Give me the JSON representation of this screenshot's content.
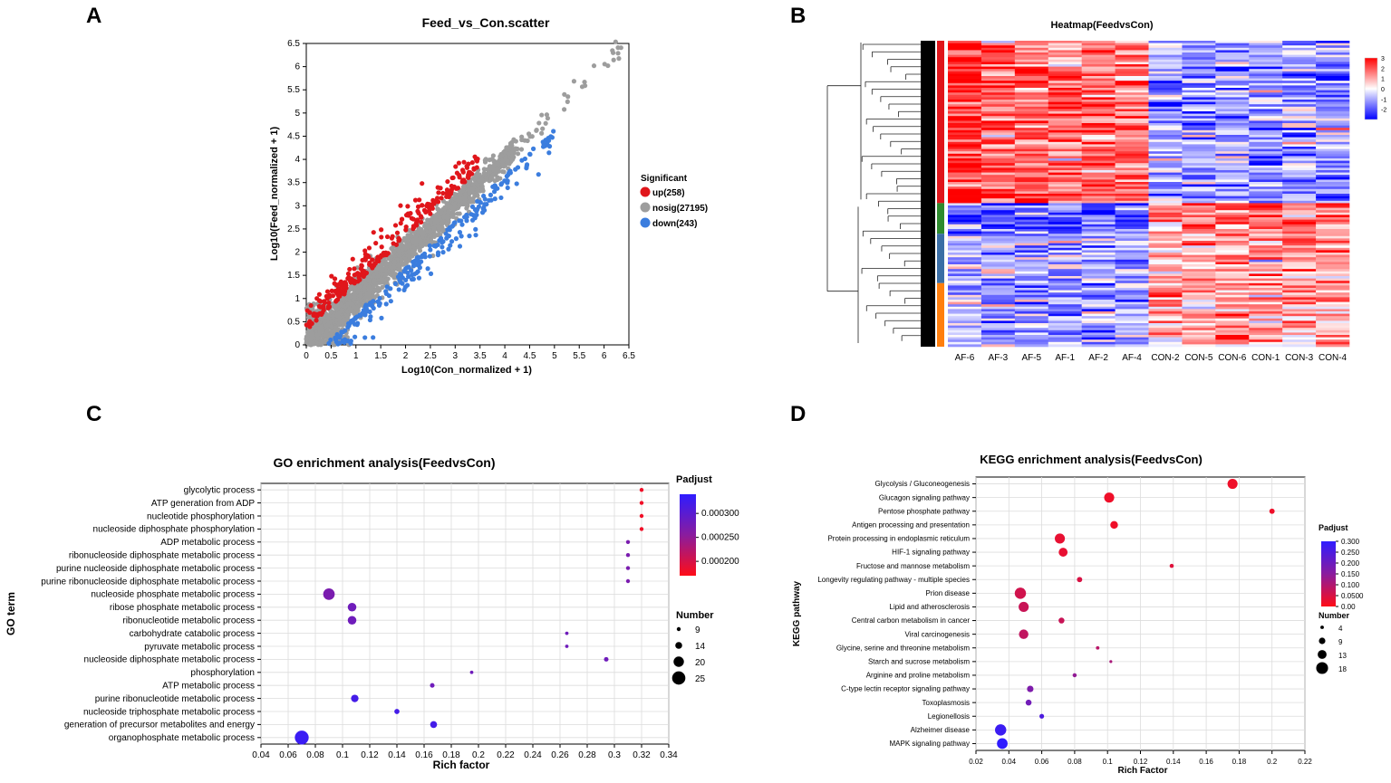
{
  "panels": {
    "a": "A",
    "b": "B",
    "c": "C",
    "d": "D"
  },
  "chart_data": [
    {
      "id": "scatter",
      "type": "scatter",
      "title": "Feed_vs_Con.scatter",
      "xlabel": "Log10(Con_normalized + 1)",
      "ylabel": "Log10(Feed_normalized + 1)",
      "xlim": [
        0,
        6.5
      ],
      "ylim": [
        0,
        6.5
      ],
      "ticks": [
        "0",
        "0.5",
        "1",
        "1.5",
        "2",
        "2.5",
        "3",
        "3.5",
        "4",
        "4.5",
        "5",
        "5.5",
        "6",
        "6.5"
      ],
      "legend_title": "Significant",
      "legend": [
        {
          "label": "up(258)",
          "color": "#e0161b"
        },
        {
          "label": "nosig(27195)",
          "color": "#9d9d9d"
        },
        {
          "label": "down(243)",
          "color": "#3b7dde"
        }
      ],
      "series_counts": {
        "up": 258,
        "nosig": 27195,
        "down": 243
      },
      "note": "point cloud along diagonal; up points above, down points below"
    },
    {
      "id": "heatmap",
      "type": "heatmap",
      "title": "Heatmap(FeedvsCon)",
      "columns": [
        "AF-6",
        "AF-3",
        "AF-5",
        "AF-1",
        "AF-2",
        "AF-4",
        "CON-2",
        "CON-5",
        "CON-6",
        "CON-1",
        "CON-3",
        "CON-4"
      ],
      "colorbar_ticks": [
        "3",
        "2",
        "1",
        "0",
        "-1",
        "-2"
      ],
      "colorscale": [
        "#0000ff",
        "#ffffff",
        "#ff0000"
      ],
      "cluster_colors": [
        "#e0161b",
        "#2e8b2e",
        "#3a6ea5",
        "#ff7f0e"
      ]
    },
    {
      "id": "go",
      "type": "scatter",
      "title": "GO enrichment analysis(FeedvsCon)",
      "xlabel": "Rich factor",
      "ylabel": "GO term",
      "xlim": [
        0.04,
        0.34
      ],
      "xticks": [
        "0.04",
        "0.06",
        "0.08",
        "0.1",
        "0.12",
        "0.14",
        "0.16",
        "0.18",
        "0.2",
        "0.22",
        "0.24",
        "0.26",
        "0.28",
        "0.3",
        "0.32",
        "0.34"
      ],
      "terms": [
        {
          "term": "glycolytic process",
          "rich": 0.32,
          "number": 9,
          "padj": 0.00018
        },
        {
          "term": "ATP generation from ADP",
          "rich": 0.32,
          "number": 9,
          "padj": 0.00018
        },
        {
          "term": "nucleotide phosphorylation",
          "rich": 0.32,
          "number": 9,
          "padj": 0.00018
        },
        {
          "term": "nucleoside diphosphate phosphorylation",
          "rich": 0.32,
          "number": 9,
          "padj": 0.00018
        },
        {
          "term": "ADP metabolic process",
          "rich": 0.31,
          "number": 9,
          "padj": 0.00027
        },
        {
          "term": "ribonucleoside diphosphate metabolic process",
          "rich": 0.31,
          "number": 9,
          "padj": 0.00027
        },
        {
          "term": "purine nucleoside diphosphate metabolic process",
          "rich": 0.31,
          "number": 9,
          "padj": 0.00027
        },
        {
          "term": "purine ribonucleoside diphosphate metabolic process",
          "rich": 0.31,
          "number": 9,
          "padj": 0.00027
        },
        {
          "term": "nucleoside phosphate metabolic process",
          "rich": 0.09,
          "number": 22,
          "padj": 0.00027
        },
        {
          "term": "ribose phosphate metabolic process",
          "rich": 0.107,
          "number": 17,
          "padj": 0.00028
        },
        {
          "term": "ribonucleotide metabolic process",
          "rich": 0.107,
          "number": 17,
          "padj": 0.00028
        },
        {
          "term": "carbohydrate catabolic process",
          "rich": 0.265,
          "number": 8,
          "padj": 0.00028
        },
        {
          "term": "pyruvate metabolic process",
          "rich": 0.265,
          "number": 8,
          "padj": 0.00028
        },
        {
          "term": "nucleoside diphosphate metabolic process",
          "rich": 0.294,
          "number": 10,
          "padj": 0.00028
        },
        {
          "term": "phosphorylation",
          "rich": 0.195,
          "number": 8,
          "padj": 0.00028
        },
        {
          "term": "ATP metabolic process",
          "rich": 0.166,
          "number": 10,
          "padj": 0.00028
        },
        {
          "term": "purine ribonucleotide metabolic process",
          "rich": 0.109,
          "number": 15,
          "padj": 0.00032
        },
        {
          "term": "nucleoside triphosphate metabolic process",
          "rich": 0.14,
          "number": 11,
          "padj": 0.00032
        },
        {
          "term": "generation of precursor metabolites and energy",
          "rich": 0.167,
          "number": 14,
          "padj": 0.00032
        },
        {
          "term": "organophosphate metabolic process",
          "rich": 0.07,
          "number": 26,
          "padj": 0.00033
        }
      ],
      "legend_padj_title": "Padjust",
      "legend_padj_ticks": [
        {
          "label": "0.000300",
          "value": 0.0003
        },
        {
          "label": "0.000250",
          "value": 0.00025
        },
        {
          "label": "0.000200",
          "value": 0.0002
        }
      ],
      "legend_padj_range": [
        0.00017,
        0.00034
      ],
      "legend_number_title": "Number",
      "legend_number_items": [
        {
          "label": "9",
          "value": 9
        },
        {
          "label": "14",
          "value": 14
        },
        {
          "label": "20",
          "value": 20
        },
        {
          "label": "25",
          "value": 25
        }
      ]
    },
    {
      "id": "kegg",
      "type": "scatter",
      "title": "KEGG enrichment analysis(FeedvsCon)",
      "xlabel": "Rich Factor",
      "ylabel": "KEGG pathway",
      "xlim": [
        0.02,
        0.22
      ],
      "xticks": [
        "0.02",
        "0.04",
        "0.06",
        "0.08",
        "0.1",
        "0.12",
        "0.14",
        "0.16",
        "0.18",
        "0.2",
        "0.22"
      ],
      "terms": [
        {
          "term": "Glycolysis / Gluconeogenesis",
          "rich": 0.176,
          "number": 15,
          "padj": 0.02
        },
        {
          "term": "Glucagon signaling pathway",
          "rich": 0.101,
          "number": 15,
          "padj": 0.02
        },
        {
          "term": "Pentose phosphate pathway",
          "rich": 0.2,
          "number": 7,
          "padj": 0.02
        },
        {
          "term": "Antigen processing and presentation",
          "rich": 0.104,
          "number": 11,
          "padj": 0.02
        },
        {
          "term": "Protein processing in endoplasmic reticulum",
          "rich": 0.071,
          "number": 15,
          "padj": 0.03
        },
        {
          "term": "HIF-1 signaling pathway",
          "rich": 0.073,
          "number": 13,
          "padj": 0.03
        },
        {
          "term": "Fructose and mannose metabolism",
          "rich": 0.139,
          "number": 5,
          "padj": 0.04
        },
        {
          "term": "Longevity regulating pathway - multiple species",
          "rich": 0.083,
          "number": 7,
          "padj": 0.05
        },
        {
          "term": "Prion disease",
          "rich": 0.047,
          "number": 17,
          "padj": 0.06
        },
        {
          "term": "Lipid and atherosclerosis",
          "rich": 0.049,
          "number": 15,
          "padj": 0.07
        },
        {
          "term": "Central carbon metabolism in cancer",
          "rich": 0.072,
          "number": 8,
          "padj": 0.07
        },
        {
          "term": "Viral carcinogenesis",
          "rich": 0.049,
          "number": 14,
          "padj": 0.08
        },
        {
          "term": "Glycine, serine and threonine metabolism",
          "rich": 0.094,
          "number": 4,
          "padj": 0.09
        },
        {
          "term": "Starch and sucrose metabolism",
          "rich": 0.102,
          "number": 3,
          "padj": 0.11
        },
        {
          "term": "Arginine and proline metabolism",
          "rich": 0.08,
          "number": 5,
          "padj": 0.14
        },
        {
          "term": "C-type lectin receptor signaling pathway",
          "rich": 0.053,
          "number": 9,
          "padj": 0.17
        },
        {
          "term": "Toxoplasmosis",
          "rich": 0.052,
          "number": 8,
          "padj": 0.19
        },
        {
          "term": "Legionellosis",
          "rich": 0.06,
          "number": 6,
          "padj": 0.25
        },
        {
          "term": "Alzheimer disease",
          "rich": 0.035,
          "number": 17,
          "padj": 0.28
        },
        {
          "term": "MAPK signaling pathway",
          "rich": 0.036,
          "number": 16,
          "padj": 0.3
        }
      ],
      "legend_padj_title": "Padjust",
      "legend_padj_ticks": [
        {
          "label": "0.300",
          "value": 0.3
        },
        {
          "label": "0.250",
          "value": 0.25
        },
        {
          "label": "0.200",
          "value": 0.2
        },
        {
          "label": "0.150",
          "value": 0.15
        },
        {
          "label": "0.100",
          "value": 0.1
        },
        {
          "label": "0.0500",
          "value": 0.05
        },
        {
          "label": "0.00",
          "value": 0.0
        }
      ],
      "legend_padj_range": [
        0.0,
        0.3
      ],
      "legend_number_title": "Number",
      "legend_number_items": [
        {
          "label": "4",
          "value": 4
        },
        {
          "label": "9",
          "value": 9
        },
        {
          "label": "13",
          "value": 13
        },
        {
          "label": "18",
          "value": 18
        }
      ]
    }
  ]
}
